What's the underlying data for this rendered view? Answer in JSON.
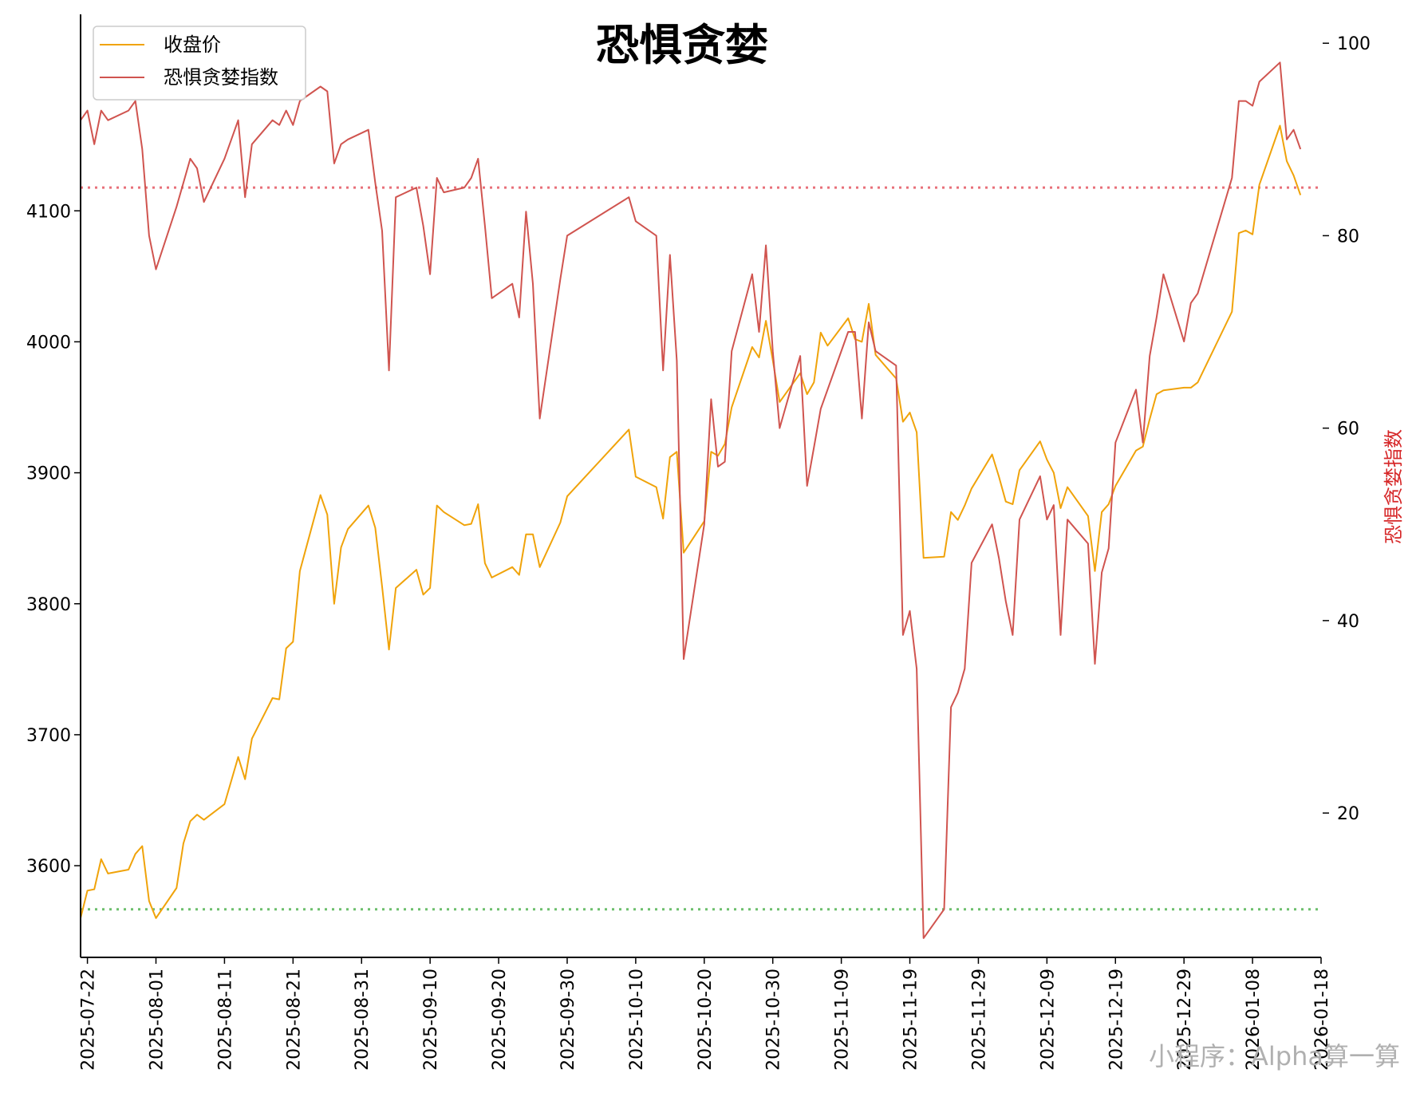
{
  "chart_data": {
    "type": "line",
    "title": "恐惧贪婪",
    "watermark": "小程序：Alpha算一算",
    "x_ticks": [
      "2025-07-22",
      "2025-08-01",
      "2025-08-11",
      "2025-08-21",
      "2025-08-31",
      "2025-09-10",
      "2025-09-20",
      "2025-09-30",
      "2025-10-10",
      "2025-10-20",
      "2025-10-30",
      "2025-11-09",
      "2025-11-19",
      "2025-11-29",
      "2025-12-09",
      "2025-12-19",
      "2025-12-29",
      "2026-01-08",
      "2026-01-18"
    ],
    "x_range": [
      "2025-07-21",
      "2026-01-18"
    ],
    "y_left": {
      "label": "",
      "range": [
        3530,
        4250
      ],
      "ticks": [
        3600,
        3700,
        3800,
        3900,
        4000,
        4100
      ]
    },
    "y_right": {
      "label": "恐惧贪婪指数",
      "range": [
        5,
        103
      ],
      "ticks": [
        20,
        40,
        60,
        80,
        100
      ],
      "color": "#d62728"
    },
    "reference_lines": [
      {
        "axis": "right",
        "value": 85,
        "color": "#e8707a"
      },
      {
        "axis": "right",
        "value": 10,
        "color": "#6cbf6c"
      }
    ],
    "legend": {
      "position": "top-left"
    },
    "series": [
      {
        "name": "收盘价",
        "axis": "left",
        "color": "#f0a30a",
        "points": [
          [
            "2025-07-21",
            3560
          ],
          [
            "2025-07-22",
            3581
          ],
          [
            "2025-07-23",
            3582
          ],
          [
            "2025-07-24",
            3605
          ],
          [
            "2025-07-25",
            3594
          ],
          [
            "2025-07-28",
            3597
          ],
          [
            "2025-07-29",
            3609
          ],
          [
            "2025-07-30",
            3615
          ],
          [
            "2025-07-31",
            3573
          ],
          [
            "2025-08-01",
            3560
          ],
          [
            "2025-08-04",
            3583
          ],
          [
            "2025-08-05",
            3617
          ],
          [
            "2025-08-06",
            3634
          ],
          [
            "2025-08-07",
            3639
          ],
          [
            "2025-08-08",
            3635
          ],
          [
            "2025-08-11",
            3647
          ],
          [
            "2025-08-12",
            3665
          ],
          [
            "2025-08-13",
            3683
          ],
          [
            "2025-08-14",
            3666
          ],
          [
            "2025-08-15",
            3697
          ],
          [
            "2025-08-18",
            3728
          ],
          [
            "2025-08-19",
            3727
          ],
          [
            "2025-08-20",
            3766
          ],
          [
            "2025-08-21",
            3771
          ],
          [
            "2025-08-22",
            3825
          ],
          [
            "2025-08-25",
            3883
          ],
          [
            "2025-08-26",
            3868
          ],
          [
            "2025-08-27",
            3800
          ],
          [
            "2025-08-28",
            3843
          ],
          [
            "2025-08-29",
            3857
          ],
          [
            "2025-09-01",
            3875
          ],
          [
            "2025-09-02",
            3858
          ],
          [
            "2025-09-03",
            3813
          ],
          [
            "2025-09-04",
            3765
          ],
          [
            "2025-09-05",
            3812
          ],
          [
            "2025-09-08",
            3826
          ],
          [
            "2025-09-09",
            3807
          ],
          [
            "2025-09-10",
            3812
          ],
          [
            "2025-09-11",
            3875
          ],
          [
            "2025-09-12",
            3870
          ],
          [
            "2025-09-15",
            3860
          ],
          [
            "2025-09-16",
            3861
          ],
          [
            "2025-09-17",
            3876
          ],
          [
            "2025-09-18",
            3831
          ],
          [
            "2025-09-19",
            3820
          ],
          [
            "2025-09-22",
            3828
          ],
          [
            "2025-09-23",
            3822
          ],
          [
            "2025-09-24",
            3853
          ],
          [
            "2025-09-25",
            3853
          ],
          [
            "2025-09-26",
            3828
          ],
          [
            "2025-09-29",
            3862
          ],
          [
            "2025-09-30",
            3882
          ],
          [
            "2025-10-09",
            3933
          ],
          [
            "2025-10-10",
            3897
          ],
          [
            "2025-10-13",
            3889
          ],
          [
            "2025-10-14",
            3865
          ],
          [
            "2025-10-15",
            3912
          ],
          [
            "2025-10-16",
            3916
          ],
          [
            "2025-10-17",
            3839
          ],
          [
            "2025-10-20",
            3863
          ],
          [
            "2025-10-21",
            3916
          ],
          [
            "2025-10-22",
            3913
          ],
          [
            "2025-10-23",
            3922
          ],
          [
            "2025-10-24",
            3950
          ],
          [
            "2025-10-27",
            3996
          ],
          [
            "2025-10-28",
            3988
          ],
          [
            "2025-10-29",
            4016
          ],
          [
            "2025-10-30",
            3986
          ],
          [
            "2025-10-31",
            3954
          ],
          [
            "2025-11-03",
            3976
          ],
          [
            "2025-11-04",
            3960
          ],
          [
            "2025-11-05",
            3969
          ],
          [
            "2025-11-06",
            4007
          ],
          [
            "2025-11-07",
            3997
          ],
          [
            "2025-11-10",
            4018
          ],
          [
            "2025-11-11",
            4002
          ],
          [
            "2025-11-12",
            4000
          ],
          [
            "2025-11-13",
            4029
          ],
          [
            "2025-11-14",
            3990
          ],
          [
            "2025-11-17",
            3972
          ],
          [
            "2025-11-18",
            3939
          ],
          [
            "2025-11-19",
            3946
          ],
          [
            "2025-11-20",
            3931
          ],
          [
            "2025-11-21",
            3835
          ],
          [
            "2025-11-24",
            3836
          ],
          [
            "2025-11-25",
            3870
          ],
          [
            "2025-11-26",
            3864
          ],
          [
            "2025-11-27",
            3875
          ],
          [
            "2025-11-28",
            3888
          ],
          [
            "2025-12-01",
            3914
          ],
          [
            "2025-12-02",
            3897
          ],
          [
            "2025-12-03",
            3878
          ],
          [
            "2025-12-04",
            3876
          ],
          [
            "2025-12-05",
            3902
          ],
          [
            "2025-12-08",
            3924
          ],
          [
            "2025-12-09",
            3910
          ],
          [
            "2025-12-10",
            3900
          ],
          [
            "2025-12-11",
            3873
          ],
          [
            "2025-12-12",
            3889
          ],
          [
            "2025-12-15",
            3867
          ],
          [
            "2025-12-16",
            3825
          ],
          [
            "2025-12-17",
            3870
          ],
          [
            "2025-12-18",
            3876
          ],
          [
            "2025-12-19",
            3890
          ],
          [
            "2025-12-22",
            3917
          ],
          [
            "2025-12-23",
            3920
          ],
          [
            "2025-12-24",
            3941
          ],
          [
            "2025-12-25",
            3960
          ],
          [
            "2025-12-26",
            3963
          ],
          [
            "2025-12-29",
            3965
          ],
          [
            "2025-12-30",
            3965
          ],
          [
            "2025-12-31",
            3969
          ],
          [
            "2026-01-05",
            4023
          ],
          [
            "2026-01-06",
            4083
          ],
          [
            "2026-01-07",
            4085
          ],
          [
            "2026-01-08",
            4082
          ],
          [
            "2026-01-09",
            4120
          ],
          [
            "2026-01-12",
            4165
          ],
          [
            "2026-01-13",
            4138
          ],
          [
            "2026-01-14",
            4127
          ],
          [
            "2026-01-15",
            4112
          ]
        ]
      },
      {
        "name": "恐惧贪婪指数",
        "axis": "right",
        "color": "#d0544f",
        "points": [
          [
            "2025-07-21",
            92
          ],
          [
            "2025-07-22",
            93
          ],
          [
            "2025-07-23",
            89.5
          ],
          [
            "2025-07-24",
            93
          ],
          [
            "2025-07-25",
            92
          ],
          [
            "2025-07-28",
            93
          ],
          [
            "2025-07-29",
            94
          ],
          [
            "2025-07-30",
            89
          ],
          [
            "2025-07-31",
            80
          ],
          [
            "2025-08-01",
            76.5
          ],
          [
            "2025-08-04",
            83
          ],
          [
            "2025-08-05",
            85.5
          ],
          [
            "2025-08-06",
            88
          ],
          [
            "2025-08-07",
            87
          ],
          [
            "2025-08-08",
            83.5
          ],
          [
            "2025-08-11",
            88
          ],
          [
            "2025-08-12",
            90
          ],
          [
            "2025-08-13",
            92
          ],
          [
            "2025-08-14",
            84
          ],
          [
            "2025-08-15",
            89.5
          ],
          [
            "2025-08-18",
            92
          ],
          [
            "2025-08-19",
            91.5
          ],
          [
            "2025-08-20",
            93
          ],
          [
            "2025-08-21",
            91.5
          ],
          [
            "2025-08-22",
            94
          ],
          [
            "2025-08-25",
            95.5
          ],
          [
            "2025-08-26",
            95
          ],
          [
            "2025-08-27",
            87.5
          ],
          [
            "2025-08-28",
            89.5
          ],
          [
            "2025-08-29",
            90
          ],
          [
            "2025-09-01",
            91
          ],
          [
            "2025-09-02",
            85.5
          ],
          [
            "2025-09-03",
            80.5
          ],
          [
            "2025-09-04",
            66
          ],
          [
            "2025-09-05",
            84
          ],
          [
            "2025-09-08",
            85
          ],
          [
            "2025-09-09",
            81
          ],
          [
            "2025-09-10",
            76
          ],
          [
            "2025-09-11",
            86
          ],
          [
            "2025-09-12",
            84.5
          ],
          [
            "2025-09-15",
            85
          ],
          [
            "2025-09-16",
            86
          ],
          [
            "2025-09-17",
            88
          ],
          [
            "2025-09-18",
            81
          ],
          [
            "2025-09-19",
            73.5
          ],
          [
            "2025-09-22",
            75
          ],
          [
            "2025-09-23",
            71.5
          ],
          [
            "2025-09-24",
            82.5
          ],
          [
            "2025-09-25",
            75
          ],
          [
            "2025-09-26",
            61
          ],
          [
            "2025-09-29",
            75.5
          ],
          [
            "2025-09-30",
            80
          ],
          [
            "2025-10-09",
            84
          ],
          [
            "2025-10-10",
            81.5
          ],
          [
            "2025-10-13",
            80
          ],
          [
            "2025-10-14",
            66
          ],
          [
            "2025-10-15",
            78
          ],
          [
            "2025-10-16",
            67
          ],
          [
            "2025-10-17",
            36
          ],
          [
            "2025-10-20",
            50
          ],
          [
            "2025-10-21",
            63
          ],
          [
            "2025-10-22",
            56
          ],
          [
            "2025-10-23",
            56.5
          ],
          [
            "2025-10-24",
            68
          ],
          [
            "2025-10-27",
            76
          ],
          [
            "2025-10-28",
            70
          ],
          [
            "2025-10-29",
            79
          ],
          [
            "2025-10-30",
            68
          ],
          [
            "2025-10-31",
            60
          ],
          [
            "2025-11-03",
            67.5
          ],
          [
            "2025-11-04",
            54
          ],
          [
            "2025-11-05",
            58
          ],
          [
            "2025-11-06",
            62
          ],
          [
            "2025-11-10",
            70
          ],
          [
            "2025-11-11",
            70
          ],
          [
            "2025-11-12",
            61
          ],
          [
            "2025-11-13",
            71
          ],
          [
            "2025-11-14",
            68
          ],
          [
            "2025-11-17",
            66.5
          ],
          [
            "2025-11-18",
            38.5
          ],
          [
            "2025-11-19",
            41
          ],
          [
            "2025-11-20",
            35
          ],
          [
            "2025-11-21",
            7
          ],
          [
            "2025-11-24",
            10
          ],
          [
            "2025-11-25",
            31
          ],
          [
            "2025-11-26",
            32.5
          ],
          [
            "2025-11-27",
            35
          ],
          [
            "2025-11-28",
            46
          ],
          [
            "2025-12-01",
            50
          ],
          [
            "2025-12-02",
            46.5
          ],
          [
            "2025-12-03",
            42
          ],
          [
            "2025-12-04",
            38.5
          ],
          [
            "2025-12-05",
            50.5
          ],
          [
            "2025-12-08",
            55
          ],
          [
            "2025-12-09",
            50.5
          ],
          [
            "2025-12-10",
            52
          ],
          [
            "2025-12-11",
            38.5
          ],
          [
            "2025-12-12",
            50.5
          ],
          [
            "2025-12-15",
            48
          ],
          [
            "2025-12-16",
            35.5
          ],
          [
            "2025-12-17",
            45
          ],
          [
            "2025-12-18",
            47.5
          ],
          [
            "2025-12-19",
            58.5
          ],
          [
            "2025-12-22",
            64
          ],
          [
            "2025-12-23",
            58.5
          ],
          [
            "2025-12-24",
            67.5
          ],
          [
            "2025-12-25",
            71.5
          ],
          [
            "2025-12-26",
            76
          ],
          [
            "2025-12-29",
            69
          ],
          [
            "2025-12-30",
            73
          ],
          [
            "2025-12-31",
            74
          ],
          [
            "2026-01-05",
            86
          ],
          [
            "2026-01-06",
            94
          ],
          [
            "2026-01-07",
            94
          ],
          [
            "2026-01-08",
            93.5
          ],
          [
            "2026-01-09",
            96
          ],
          [
            "2026-01-12",
            98
          ],
          [
            "2026-01-13",
            90
          ],
          [
            "2026-01-14",
            91
          ],
          [
            "2026-01-15",
            89
          ]
        ]
      }
    ]
  }
}
